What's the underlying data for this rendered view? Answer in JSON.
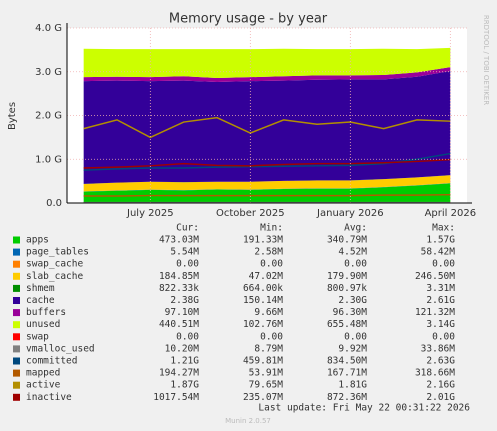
{
  "chart_data": {
    "type": "area",
    "title": "Memory usage - by year",
    "y_label": "Bytes",
    "categories": [
      null,
      null,
      "July 2025",
      null,
      null,
      "October 2025",
      null,
      null,
      "January 2026",
      null,
      null,
      "April 2026"
    ],
    "ylim": [
      0,
      4
    ],
    "yticks": [
      {
        "value": 0,
        "label": "0.0"
      },
      {
        "value": 1,
        "label": "1.0 G"
      },
      {
        "value": 2,
        "label": "2.0 G"
      },
      {
        "value": 3,
        "label": "3.0 G"
      },
      {
        "value": 4,
        "label": "4.0 G"
      }
    ],
    "grid": true,
    "columns": [
      "Cur:",
      "Min:",
      "Avg:",
      "Max:"
    ],
    "series": [
      {
        "name": "apps",
        "color": "#00cc00",
        "style": "area",
        "values": [
          0.26,
          0.28,
          0.3,
          0.29,
          0.31,
          0.3,
          0.32,
          0.33,
          0.33,
          0.36,
          0.4,
          0.45
        ],
        "cur": "473.03M",
        "min": "191.33M",
        "avg": "340.79M",
        "max": "1.57G"
      },
      {
        "name": "page_tables",
        "color": "#0066b3",
        "style": "area",
        "values": [
          0.005,
          0.005,
          0.005,
          0.005,
          0.005,
          0.005,
          0.005,
          0.005,
          0.005,
          0.005,
          0.005,
          0.005
        ],
        "cur": "5.54M",
        "min": "2.58M",
        "avg": "4.52M",
        "max": "58.42M"
      },
      {
        "name": "swap_cache",
        "color": "#ff8000",
        "style": "area",
        "values": [
          0,
          0,
          0,
          0,
          0,
          0,
          0,
          0,
          0,
          0,
          0,
          0
        ],
        "cur": "0.00",
        "min": "0.00",
        "avg": "0.00",
        "max": "0.00"
      },
      {
        "name": "slab_cache",
        "color": "#ffcc00",
        "style": "area",
        "values": [
          0.17,
          0.18,
          0.18,
          0.18,
          0.17,
          0.18,
          0.18,
          0.18,
          0.18,
          0.18,
          0.18,
          0.18
        ],
        "cur": "184.85M",
        "min": "47.02M",
        "avg": "179.90M",
        "max": "246.50M"
      },
      {
        "name": "shmem",
        "color": "#008f00",
        "style": "area",
        "values": [
          0.001,
          0.001,
          0.001,
          0.001,
          0.001,
          0.001,
          0.001,
          0.001,
          0.001,
          0.001,
          0.001,
          0.001
        ],
        "cur": "822.33k",
        "min": "664.00k",
        "avg": "800.97k",
        "max": "3.31M"
      },
      {
        "name": "cache",
        "color": "#330099",
        "style": "area",
        "values": [
          2.35,
          2.33,
          2.3,
          2.32,
          2.28,
          2.3,
          2.29,
          2.3,
          2.31,
          2.28,
          2.3,
          2.38
        ],
        "cur": "2.38G",
        "min": "150.14M",
        "avg": "2.30G",
        "max": "2.61G"
      },
      {
        "name": "buffers",
        "color": "#990099",
        "style": "area",
        "values": [
          0.09,
          0.09,
          0.09,
          0.1,
          0.09,
          0.09,
          0.1,
          0.1,
          0.09,
          0.1,
          0.1,
          0.09
        ],
        "cur": "97.10M",
        "min": "9.66M",
        "avg": "96.30M",
        "max": "121.32M"
      },
      {
        "name": "unused",
        "color": "#ccff00",
        "style": "area",
        "values": [
          0.65,
          0.63,
          0.64,
          0.62,
          0.66,
          0.64,
          0.63,
          0.6,
          0.6,
          0.6,
          0.53,
          0.44
        ],
        "cur": "440.51M",
        "min": "102.76M",
        "avg": "655.48M",
        "max": "3.14G"
      },
      {
        "name": "swap",
        "color": "#ff0000",
        "style": "area",
        "values": [
          0,
          0,
          0,
          0,
          0,
          0,
          0,
          0,
          0,
          0,
          0,
          0
        ],
        "cur": "0.00",
        "min": "0.00",
        "avg": "0.00",
        "max": "0.00"
      },
      {
        "name": "vmalloc_used",
        "color": "#808080",
        "style": "line",
        "values": [
          0.009,
          0.009,
          0.009,
          0.009,
          0.009,
          0.009,
          0.009,
          0.009,
          0.009,
          0.009,
          0.009,
          0.01
        ],
        "cur": "10.20M",
        "min": "8.79M",
        "avg": "9.92M",
        "max": "33.86M"
      },
      {
        "name": "committed",
        "color": "#00487d",
        "style": "line",
        "values": [
          0.75,
          0.78,
          0.8,
          0.8,
          0.82,
          0.83,
          0.84,
          0.85,
          0.86,
          0.9,
          1.0,
          1.13
        ],
        "cur": "1.21G",
        "min": "459.81M",
        "avg": "834.50M",
        "max": "2.63G"
      },
      {
        "name": "mapped",
        "color": "#b35a00",
        "style": "line",
        "values": [
          0.16,
          0.16,
          0.17,
          0.17,
          0.17,
          0.17,
          0.17,
          0.17,
          0.17,
          0.18,
          0.18,
          0.19
        ],
        "cur": "194.27M",
        "min": "53.91M",
        "avg": "167.71M",
        "max": "318.66M"
      },
      {
        "name": "active",
        "color": "#b38f00",
        "style": "line",
        "values": [
          1.7,
          1.9,
          1.5,
          1.85,
          1.95,
          1.6,
          1.9,
          1.8,
          1.85,
          1.7,
          1.9,
          1.87
        ],
        "cur": "1.87G",
        "min": "79.65M",
        "avg": "1.81G",
        "max": "2.16G"
      },
      {
        "name": "inactive",
        "color": "#a00000",
        "style": "line",
        "values": [
          0.8,
          0.82,
          0.85,
          0.9,
          0.86,
          0.85,
          0.88,
          0.9,
          0.9,
          0.92,
          0.95,
          0.99
        ],
        "cur": "1017.54M",
        "min": "235.07M",
        "avg": "872.36M",
        "max": "2.01G"
      }
    ],
    "footer": "Last update: Fri May 22 00:31:22 2026",
    "version": "Munin 2.0.57",
    "side_text": "RRDTOOL / TOBI OETIKER"
  }
}
